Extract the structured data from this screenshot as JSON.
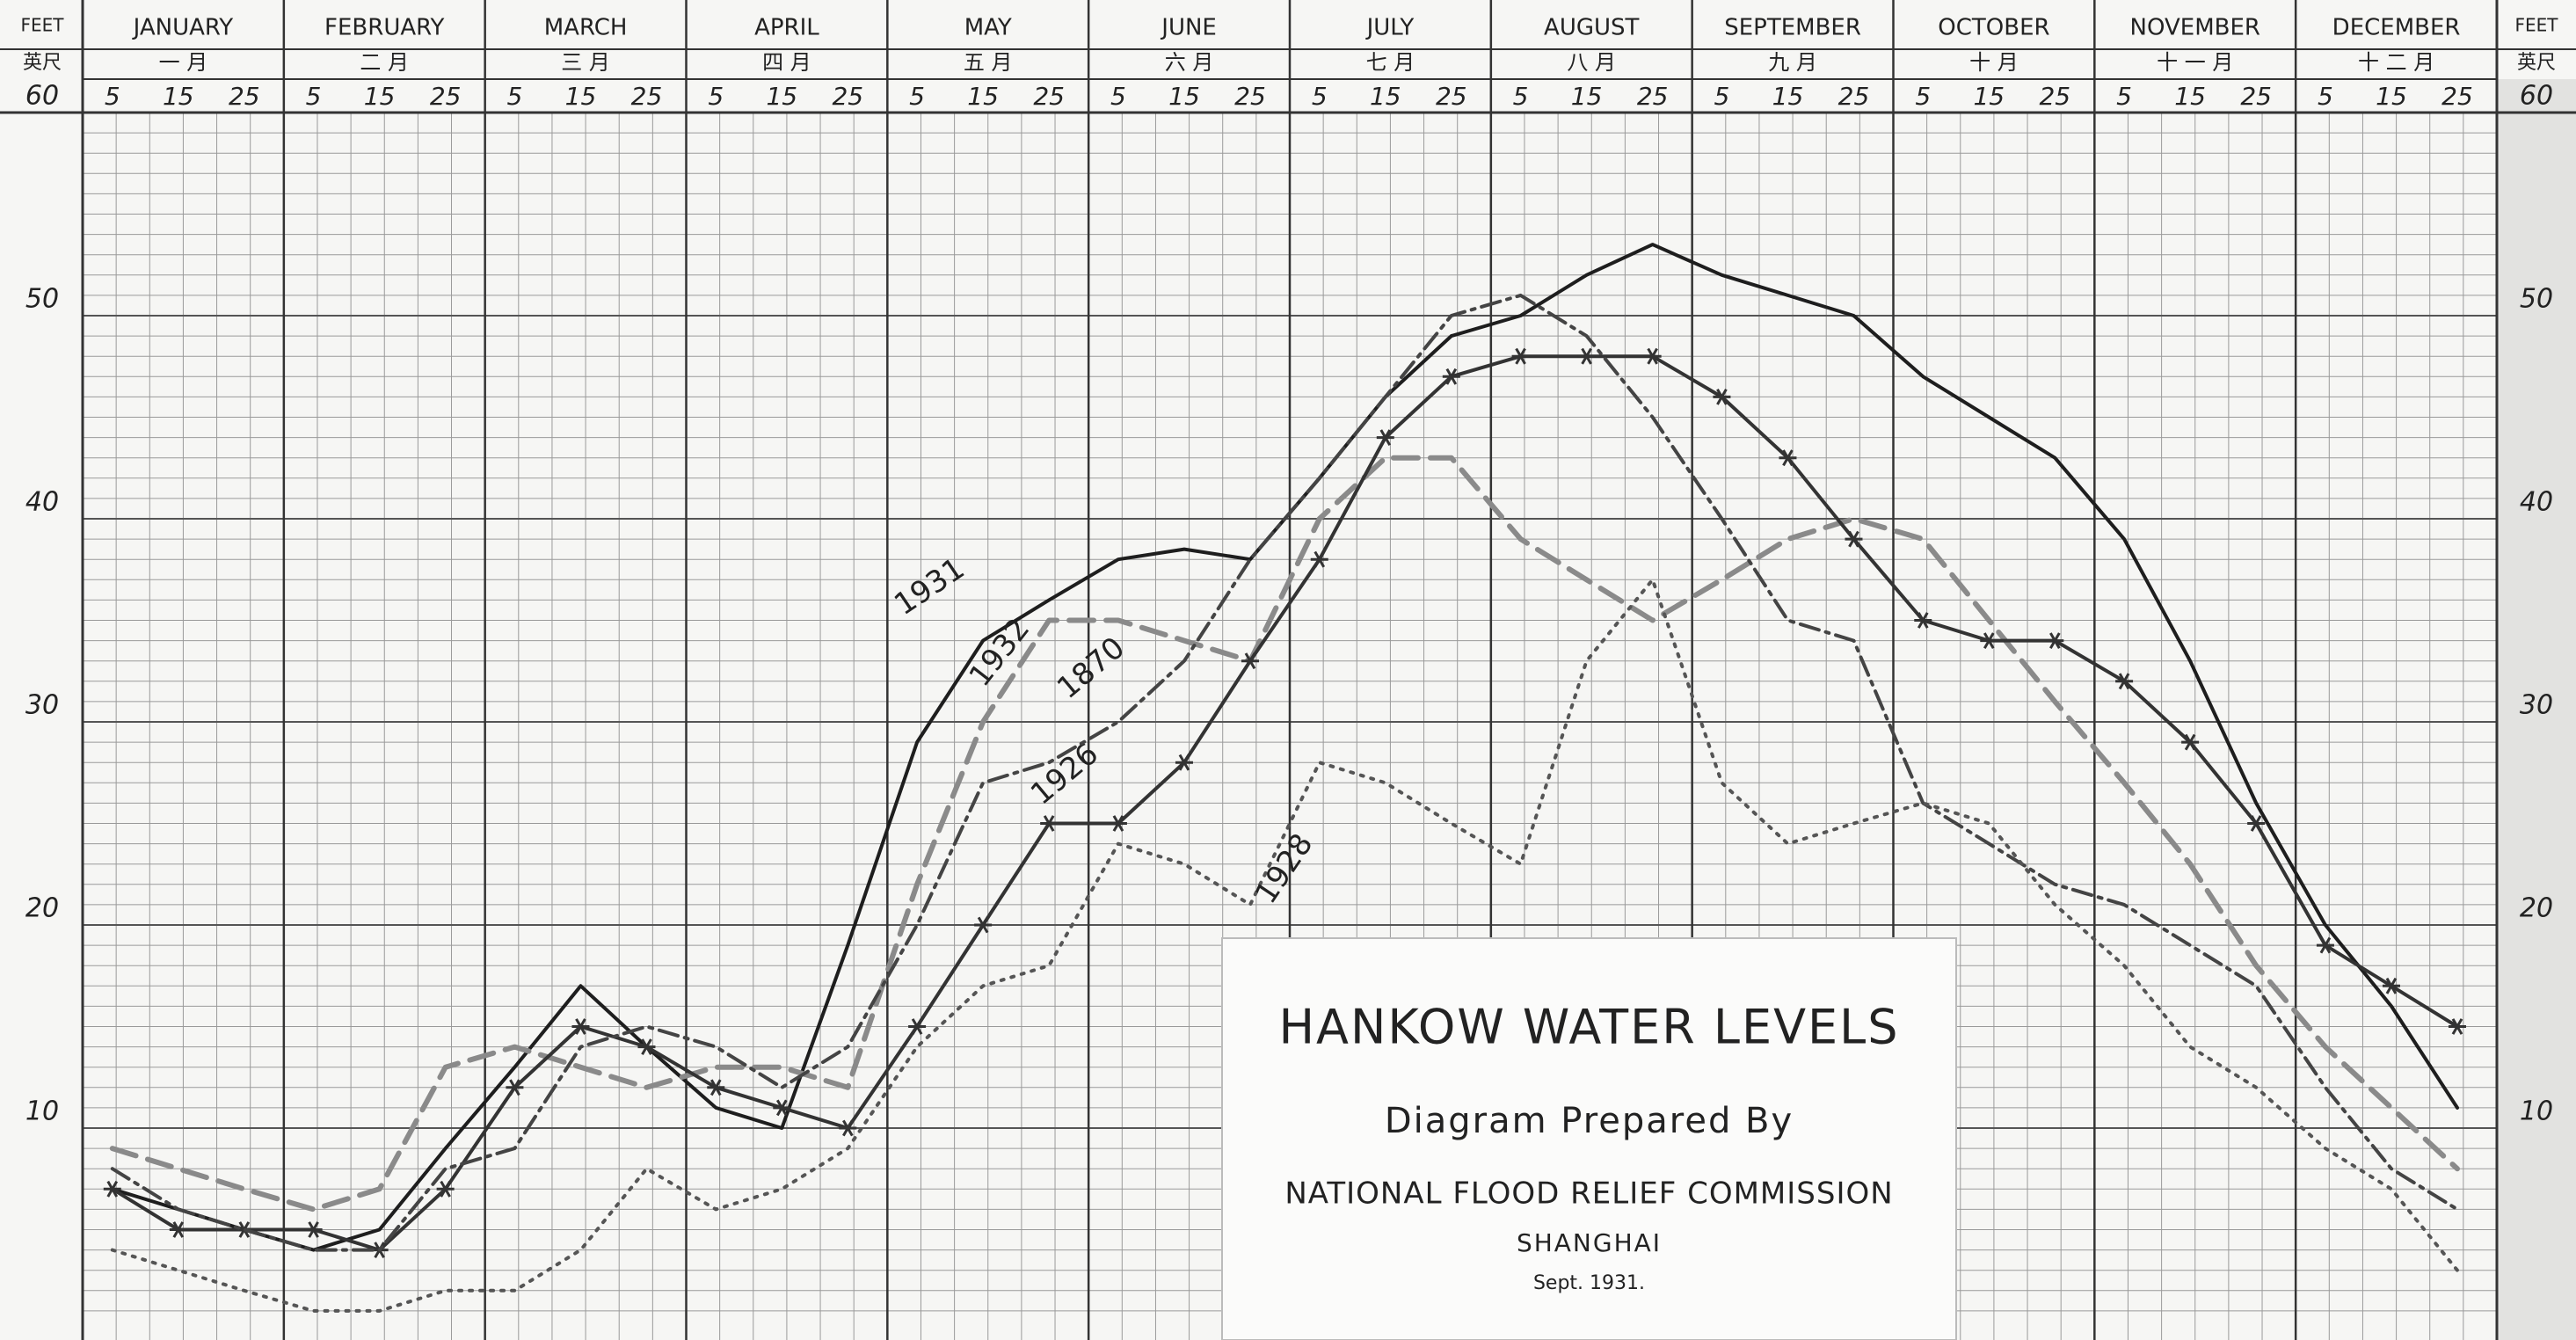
{
  "chart_data": {
    "type": "line",
    "title": "HANKOW WATER LEVELS",
    "subtitle": "Diagram Prepared By",
    "credit": "NATIONAL FLOOD RELIEF COMMISSION",
    "place": "SHANGHAI",
    "date": "Sept. 1931.",
    "y_label": "FEET",
    "y_label_chinese": "英尺",
    "months": [
      {
        "name": "JANUARY",
        "chinese": "一 月"
      },
      {
        "name": "FEBRUARY",
        "chinese": "二 月"
      },
      {
        "name": "MARCH",
        "chinese": "三 月"
      },
      {
        "name": "APRIL",
        "chinese": "四 月"
      },
      {
        "name": "MAY",
        "chinese": "五 月"
      },
      {
        "name": "JUNE",
        "chinese": "六 月"
      },
      {
        "name": "JULY",
        "chinese": "七 月"
      },
      {
        "name": "AUGUST",
        "chinese": "八 月"
      },
      {
        "name": "SEPTEMBER",
        "chinese": "九 月"
      },
      {
        "name": "OCTOBER",
        "chinese": "十 月"
      },
      {
        "name": "NOVEMBER",
        "chinese": "十 一 月"
      },
      {
        "name": "DECEMBER",
        "chinese": "十 二 月"
      }
    ],
    "categories": [
      5,
      15,
      25,
      5,
      15,
      25,
      5,
      15,
      25,
      5,
      15,
      25,
      5,
      15,
      25,
      5,
      15,
      25,
      5,
      15,
      25,
      5,
      15,
      25,
      5,
      15,
      25,
      5,
      15,
      25,
      5,
      15,
      25,
      5,
      15,
      25
    ],
    "ylim": [
      0,
      60
    ],
    "yticks": [
      10,
      20,
      30,
      40,
      50,
      60
    ],
    "grid": true,
    "series": [
      {
        "name": "1931",
        "color": "#1e1e1e",
        "dash": "solid",
        "marker": "none",
        "values": [
          7,
          6,
          5,
          4,
          5,
          9,
          13,
          17,
          14,
          11,
          10,
          19,
          29,
          34,
          36,
          38,
          38.5,
          38,
          42,
          46,
          49,
          50,
          52,
          53.5,
          52,
          51,
          50,
          47,
          45,
          43,
          39,
          33,
          26,
          20,
          16,
          11
        ]
      },
      {
        "name": "1932",
        "color": "#8a8a8a",
        "dash": "dashed",
        "marker": "none",
        "values": [
          9,
          8,
          7,
          6,
          7,
          13,
          14,
          13,
          12,
          13,
          13,
          12,
          22,
          30,
          35,
          35,
          34,
          33,
          40,
          43,
          43,
          39,
          37,
          35,
          37,
          39,
          40,
          39,
          35,
          31,
          27,
          23,
          18,
          14,
          11,
          8
        ]
      },
      {
        "name": "1926",
        "color": "#333333",
        "dash": "solid",
        "marker": "star",
        "values": [
          7,
          5,
          5,
          5,
          4,
          7,
          12,
          15,
          14,
          12,
          11,
          10,
          15,
          20,
          25,
          25,
          28,
          33,
          38,
          44,
          47,
          48,
          48,
          48,
          46,
          43,
          39,
          35,
          34,
          34,
          32,
          29,
          25,
          19,
          17,
          15
        ]
      },
      {
        "name": "1870",
        "color": "#444444",
        "dash": "dashdot",
        "marker": "none",
        "values": [
          8,
          6,
          5,
          4,
          4,
          8,
          9,
          14,
          15,
          14,
          12,
          14,
          20,
          27,
          28,
          30,
          33,
          38,
          42,
          46,
          50,
          51,
          49,
          45,
          40,
          35,
          34,
          26,
          24,
          22,
          21,
          19,
          17,
          12,
          8,
          6
        ]
      },
      {
        "name": "1928",
        "color": "#555555",
        "dash": "dotted",
        "marker": "none",
        "values": [
          4,
          3,
          2,
          1,
          1,
          2,
          2,
          4,
          8,
          6,
          7,
          9,
          14,
          17,
          18,
          24,
          23,
          21,
          28,
          27,
          25,
          23,
          33,
          37,
          27,
          24,
          25,
          26,
          25,
          21,
          18,
          14,
          12,
          9,
          7,
          3
        ]
      }
    ]
  }
}
